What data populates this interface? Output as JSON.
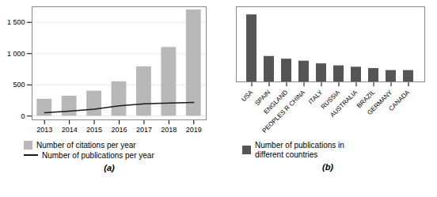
{
  "chart_data": [
    {
      "type": "bar",
      "title": "(a)",
      "x": [
        2013,
        2014,
        2015,
        2016,
        2017,
        2018,
        2019
      ],
      "xlim": [
        2012.5,
        2019.5
      ],
      "xticks": [
        2013,
        2014,
        2015,
        2016,
        2017,
        2018,
        2019
      ],
      "series": [
        {
          "name": "Number of citations per year",
          "type": "bar",
          "color": "#b8b8b8",
          "values": [
            270,
            320,
            400,
            550,
            790,
            1100,
            1700
          ]
        },
        {
          "name": "Number of publications per year",
          "type": "line",
          "color": "#1a1a1a",
          "values": [
            55,
            80,
            110,
            165,
            195,
            210,
            220
          ]
        }
      ],
      "ylim": [
        -60,
        1750
      ],
      "yticks": [
        0,
        500,
        {
          "value": 1000,
          "label": "1 000"
        },
        {
          "value": 1500,
          "label": "1 500"
        }
      ],
      "grid": true,
      "legend": "bottom"
    },
    {
      "type": "bar",
      "title": "(b)",
      "categories": [
        "USA",
        "SPAIN",
        "ENGLAND",
        "PEOPLES R CHINA",
        "ITALY",
        "RUSSIA",
        "AUSTRALIA",
        "BRAZIL",
        "GERMANY",
        "CANADA"
      ],
      "series": [
        {
          "name": "Number of publications in\ndifferent countries",
          "color": "#555555",
          "values": [
            100,
            38,
            34,
            31,
            27,
            24,
            22,
            20,
            17,
            17
          ]
        }
      ],
      "ylim": [
        0,
        112
      ],
      "tick_labels": "x",
      "legend": "bottom"
    }
  ]
}
